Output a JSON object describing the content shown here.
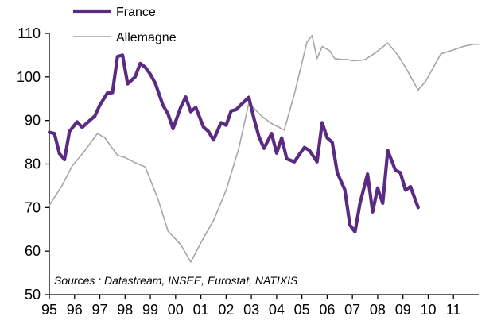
{
  "chart_data": {
    "type": "line",
    "title": "",
    "xlabel": "",
    "ylabel": "",
    "ylim": [
      50,
      110
    ],
    "yticks": [
      50,
      60,
      70,
      80,
      90,
      100,
      110
    ],
    "xlim": [
      1995.0,
      2012.0
    ],
    "xticks": [
      {
        "label": "95",
        "x": 1995.0
      },
      {
        "label": "96",
        "x": 1996.0
      },
      {
        "label": "97",
        "x": 1997.0
      },
      {
        "label": "98",
        "x": 1998.0
      },
      {
        "label": "99",
        "x": 1999.0
      },
      {
        "label": "00",
        "x": 2000.0
      },
      {
        "label": "01",
        "x": 2001.0
      },
      {
        "label": "02",
        "x": 2002.0
      },
      {
        "label": "03",
        "x": 2003.0
      },
      {
        "label": "04",
        "x": 2004.0
      },
      {
        "label": "05",
        "x": 2005.0
      },
      {
        "label": "06",
        "x": 2006.0
      },
      {
        "label": "07",
        "x": 2007.0
      },
      {
        "label": "08",
        "x": 2008.0
      },
      {
        "label": "09",
        "x": 2009.0
      },
      {
        "label": "10",
        "x": 2010.0
      },
      {
        "label": "11",
        "x": 2011.0
      }
    ],
    "legend": "top-left",
    "grid": false,
    "series": [
      {
        "name": "France",
        "color": "#5b2b83",
        "points": [
          [
            1995.0,
            87.3
          ],
          [
            1995.2,
            87.0
          ],
          [
            1995.4,
            82.4
          ],
          [
            1995.6,
            81.0
          ],
          [
            1995.8,
            87.5
          ],
          [
            1996.1,
            89.7
          ],
          [
            1996.3,
            88.4
          ],
          [
            1996.6,
            90.0
          ],
          [
            1996.8,
            91.0
          ],
          [
            1997.0,
            93.5
          ],
          [
            1997.3,
            96.3
          ],
          [
            1997.5,
            96.4
          ],
          [
            1997.7,
            104.7
          ],
          [
            1997.9,
            105.0
          ],
          [
            1998.1,
            98.4
          ],
          [
            1998.4,
            100.0
          ],
          [
            1998.6,
            103.1
          ],
          [
            1998.8,
            102.2
          ],
          [
            1999.0,
            100.6
          ],
          [
            1999.2,
            98.5
          ],
          [
            1999.5,
            93.5
          ],
          [
            1999.7,
            91.5
          ],
          [
            1999.9,
            88.1
          ],
          [
            2000.2,
            93.0
          ],
          [
            2000.4,
            95.4
          ],
          [
            2000.6,
            92.0
          ],
          [
            2000.8,
            93.0
          ],
          [
            2001.1,
            88.5
          ],
          [
            2001.3,
            87.5
          ],
          [
            2001.5,
            85.5
          ],
          [
            2001.8,
            89.5
          ],
          [
            2002.0,
            88.9
          ],
          [
            2002.2,
            92.2
          ],
          [
            2002.4,
            92.5
          ],
          [
            2002.6,
            93.7
          ],
          [
            2002.9,
            95.3
          ],
          [
            2003.1,
            90.5
          ],
          [
            2003.3,
            86.3
          ],
          [
            2003.5,
            83.6
          ],
          [
            2003.8,
            87.0
          ],
          [
            2004.0,
            82.5
          ],
          [
            2004.2,
            86.0
          ],
          [
            2004.4,
            81.2
          ],
          [
            2004.7,
            80.5
          ],
          [
            2004.9,
            82.2
          ],
          [
            2005.1,
            83.8
          ],
          [
            2005.3,
            83.1
          ],
          [
            2005.6,
            80.5
          ],
          [
            2005.8,
            89.5
          ],
          [
            2006.0,
            86.0
          ],
          [
            2006.2,
            85.0
          ],
          [
            2006.4,
            78.0
          ],
          [
            2006.7,
            74.1
          ],
          [
            2006.9,
            66.0
          ],
          [
            2007.1,
            64.4
          ],
          [
            2007.3,
            71.0
          ],
          [
            2007.6,
            77.7
          ],
          [
            2007.8,
            69.0
          ],
          [
            2008.0,
            74.5
          ],
          [
            2008.2,
            71.0
          ],
          [
            2008.4,
            83.1
          ],
          [
            2008.7,
            78.6
          ],
          [
            2008.9,
            78.0
          ],
          [
            2009.1,
            74.0
          ],
          [
            2009.3,
            74.8
          ],
          [
            2009.6,
            70.0
          ]
        ]
      },
      {
        "name": "Allemagne",
        "color": "#a6a6a6",
        "points": [
          [
            1995.0,
            70.5
          ],
          [
            1995.5,
            75.0
          ],
          [
            1995.9,
            79.5
          ],
          [
            1996.4,
            83.0
          ],
          [
            1996.9,
            87.0
          ],
          [
            1997.2,
            86.0
          ],
          [
            1997.7,
            82.0
          ],
          [
            1998.0,
            81.5
          ],
          [
            1998.4,
            80.3
          ],
          [
            1998.8,
            79.3
          ],
          [
            1999.3,
            72.0
          ],
          [
            1999.7,
            64.6
          ],
          [
            2000.2,
            61.5
          ],
          [
            2000.6,
            57.5
          ],
          [
            2001.1,
            63.0
          ],
          [
            2001.5,
            67.0
          ],
          [
            2002.0,
            74.0
          ],
          [
            2002.5,
            83.5
          ],
          [
            2002.9,
            94.0
          ],
          [
            2003.4,
            91.0
          ],
          [
            2003.8,
            89.3
          ],
          [
            2004.3,
            87.8
          ],
          [
            2004.7,
            96.0
          ],
          [
            2005.2,
            108.0
          ],
          [
            2005.4,
            109.5
          ],
          [
            2005.6,
            104.2
          ],
          [
            2005.8,
            107.0
          ],
          [
            2006.1,
            106.0
          ],
          [
            2006.3,
            104.2
          ],
          [
            2006.6,
            104.0
          ],
          [
            2006.8,
            104.0
          ],
          [
            2007.0,
            103.7
          ],
          [
            2007.3,
            103.8
          ],
          [
            2007.5,
            104.0
          ],
          [
            2007.9,
            105.5
          ],
          [
            2008.4,
            107.8
          ],
          [
            2008.8,
            105.0
          ],
          [
            2009.1,
            102.2
          ],
          [
            2009.6,
            97.0
          ],
          [
            2009.9,
            99.0
          ],
          [
            2010.5,
            105.3
          ],
          [
            2010.9,
            106.0
          ],
          [
            2011.4,
            107.0
          ],
          [
            2011.8,
            107.5
          ],
          [
            2012.0,
            107.5
          ]
        ]
      }
    ],
    "annotation": "Sources : Datastream, INSEE, Eurostat, NATIXIS"
  }
}
